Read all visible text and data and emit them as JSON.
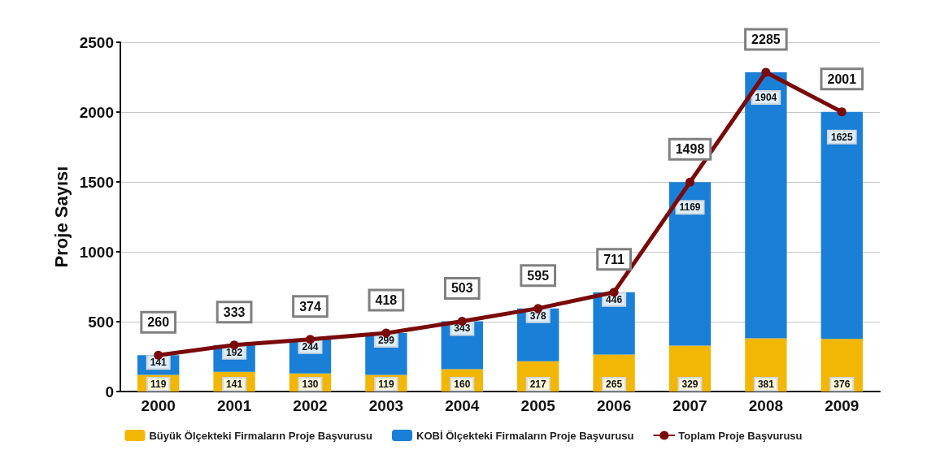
{
  "chart_data": {
    "type": "bar",
    "stacked": true,
    "ylabel": "Proje Sayısı",
    "categories": [
      "2000",
      "2001",
      "2002",
      "2003",
      "2004",
      "2005",
      "2006",
      "2007",
      "2008",
      "2009"
    ],
    "series": [
      {
        "name": "Büyük Ölçekteki Firmaların Proje Başvurusu",
        "color": "#f2b705",
        "values": [
          119,
          141,
          130,
          119,
          160,
          217,
          265,
          329,
          381,
          376
        ]
      },
      {
        "name": "KOBİ Ölçekteki Firmaların Proje Başvurusu",
        "color": "#1a7fd6",
        "values": [
          141,
          192,
          244,
          299,
          343,
          378,
          446,
          1169,
          1904,
          1625
        ]
      },
      {
        "name": "Toplam Proje Başvurusu",
        "type": "line",
        "color": "#7a0a0a",
        "values": [
          260,
          333,
          374,
          418,
          503,
          595,
          711,
          1498,
          2285,
          2001
        ]
      }
    ],
    "ylim": [
      0,
      2500
    ],
    "yticks": [
      0,
      500,
      1000,
      1500,
      2000,
      2500
    ],
    "grid": "y",
    "legend": "bottom",
    "data_labels": true,
    "marker": "circle",
    "line_style": "solid"
  }
}
